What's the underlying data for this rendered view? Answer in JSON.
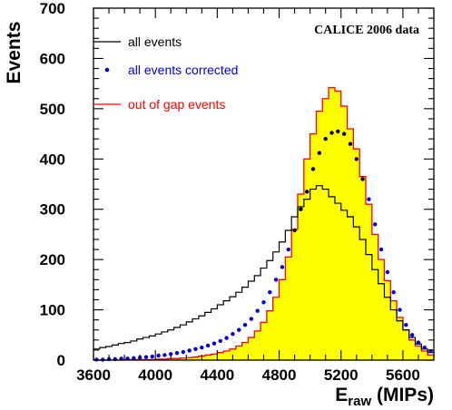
{
  "chart_data": {
    "type": "line",
    "annotation": "CALICE 2006 data",
    "ylabel": "Events",
    "xlabel": {
      "main": "E",
      "sub": "raw",
      "unit": " (MIPs)"
    },
    "xlim": [
      3600,
      5800
    ],
    "ylim": [
      0,
      700
    ],
    "x_ticks": [
      3600,
      4000,
      4400,
      4800,
      5200,
      5600
    ],
    "y_ticks": [
      0,
      100,
      200,
      300,
      400,
      500,
      600,
      700
    ],
    "grid": false,
    "legend_position": "top-left",
    "bin_width": 40,
    "x": [
      3620,
      3660,
      3700,
      3740,
      3780,
      3820,
      3860,
      3900,
      3940,
      3980,
      4020,
      4060,
      4100,
      4140,
      4180,
      4220,
      4260,
      4300,
      4340,
      4380,
      4420,
      4460,
      4500,
      4540,
      4580,
      4620,
      4660,
      4700,
      4740,
      4780,
      4820,
      4860,
      4900,
      4940,
      4980,
      5020,
      5060,
      5100,
      5140,
      5180,
      5220,
      5260,
      5300,
      5340,
      5380,
      5420,
      5460,
      5500,
      5540,
      5580,
      5620,
      5660,
      5700,
      5740,
      5780
    ],
    "series": [
      {
        "name": "all events",
        "style": "step",
        "color": "#000000",
        "values": [
          22,
          25,
          27,
          30,
          33,
          35,
          38,
          42,
          45,
          48,
          52,
          56,
          60,
          65,
          70,
          76,
          82,
          88,
          95,
          102,
          110,
          118,
          126,
          135,
          145,
          157,
          168,
          183,
          198,
          215,
          235,
          258,
          285,
          305,
          320,
          340,
          347,
          340,
          325,
          312,
          298,
          285,
          265,
          240,
          210,
          180,
          152,
          125,
          100,
          78,
          60,
          45,
          32,
          22,
          15
        ]
      },
      {
        "name": "all events corrected",
        "style": "markers",
        "color": "#0000dd",
        "values": [
          1,
          1,
          2,
          2,
          3,
          3,
          4,
          5,
          6,
          7,
          9,
          10,
          12,
          14,
          16,
          19,
          22,
          25,
          29,
          33,
          38,
          44,
          52,
          60,
          70,
          82,
          98,
          115,
          135,
          160,
          185,
          220,
          258,
          300,
          335,
          380,
          412,
          440,
          452,
          455,
          450,
          430,
          400,
          360,
          320,
          270,
          220,
          175,
          135,
          100,
          70,
          50,
          35,
          25,
          18
        ]
      },
      {
        "name": "out of gap events",
        "style": "filled-step",
        "color": "#ff0000",
        "fill": "#ffff00",
        "values": [
          0,
          0,
          0,
          0,
          0,
          1,
          1,
          1,
          1,
          1,
          2,
          2,
          3,
          3,
          4,
          5,
          6,
          8,
          10,
          12,
          15,
          18,
          22,
          28,
          35,
          45,
          58,
          75,
          98,
          125,
          160,
          205,
          260,
          330,
          400,
          450,
          495,
          520,
          542,
          535,
          505,
          460,
          420,
          365,
          310,
          250,
          200,
          158,
          118,
          85,
          60,
          40,
          28,
          18,
          10
        ]
      }
    ]
  },
  "colors": {
    "fill_yellow": "#ffff00",
    "outline_red": "#ff0000",
    "marker_blue": "#0000dd",
    "line_black": "#000000"
  }
}
